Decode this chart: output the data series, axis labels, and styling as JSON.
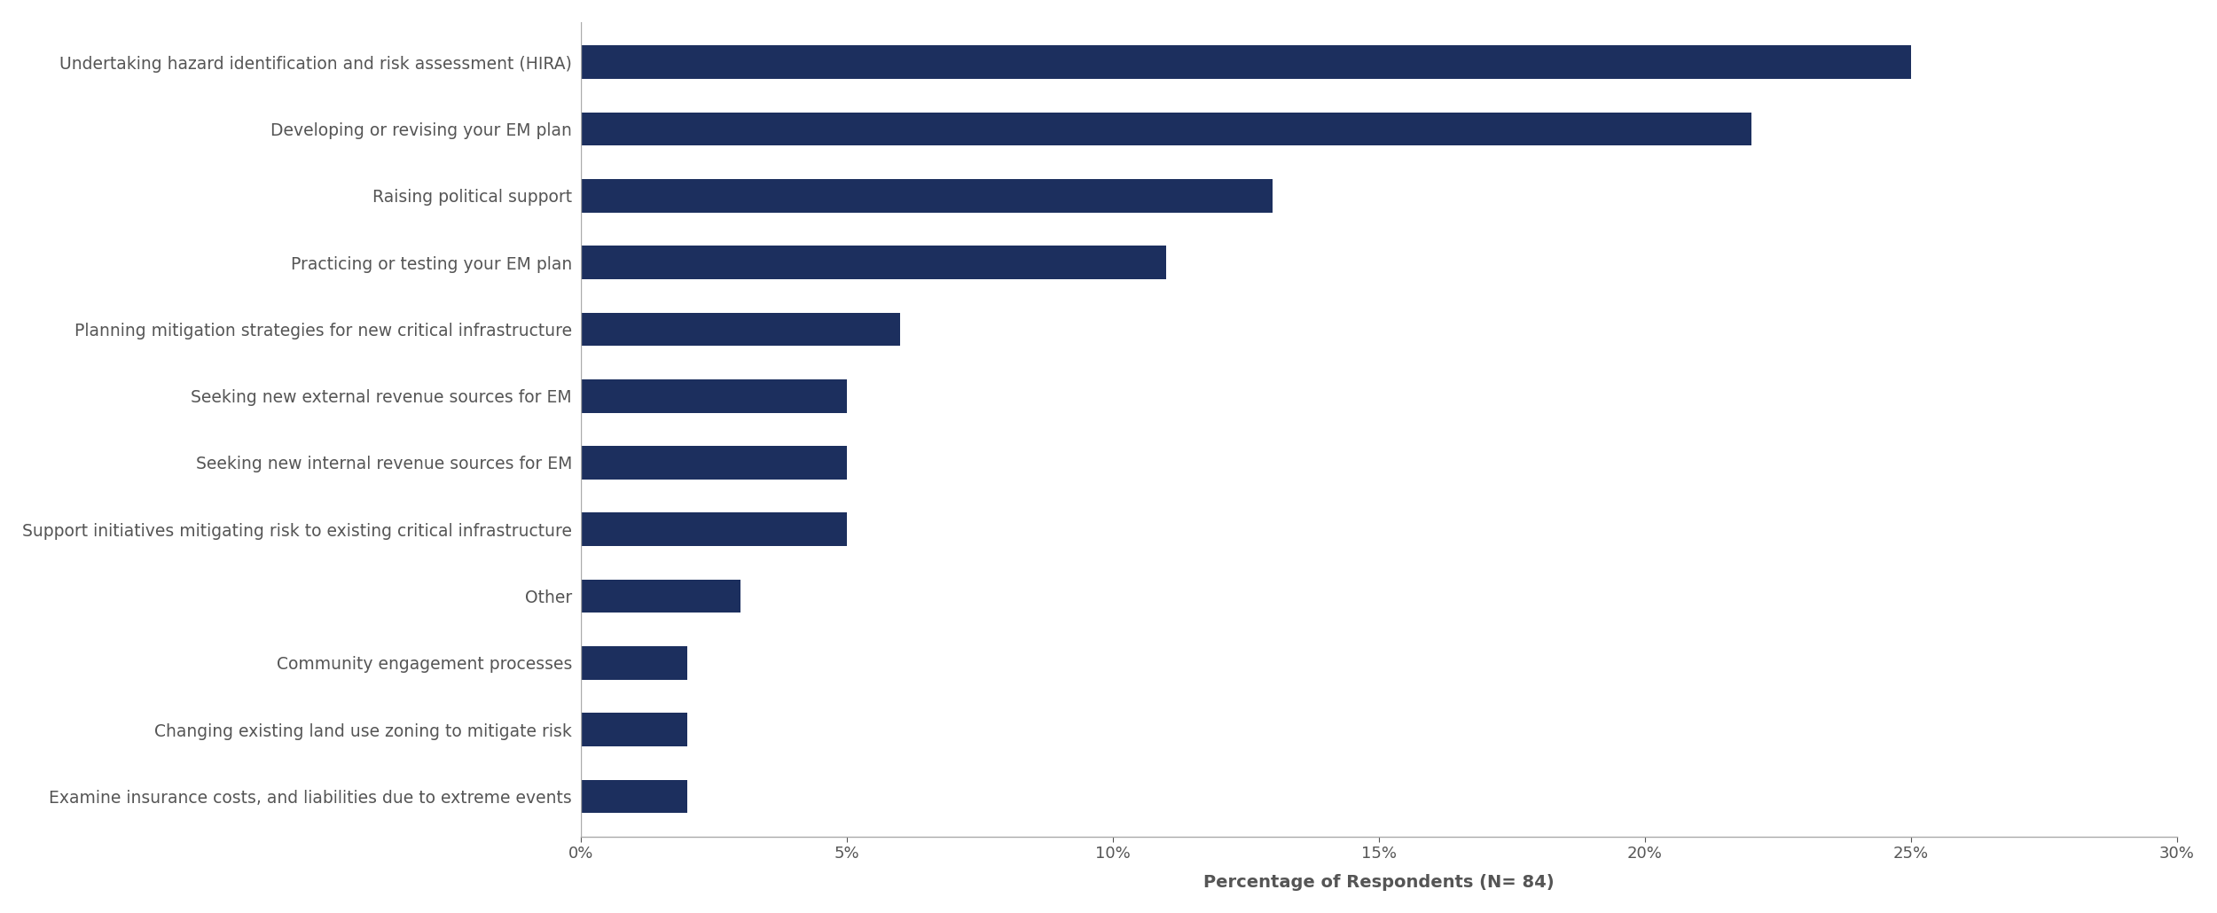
{
  "categories": [
    "Undertaking hazard identification and risk assessment (HIRA)",
    "Developing or revising your EM plan",
    "Raising political support",
    "Practicing or testing your EM plan",
    "Planning mitigation strategies for new critical infrastructure",
    "Seeking new external revenue sources for EM",
    "Seeking new internal revenue sources for EM",
    "Support initiatives mitigating risk to existing critical infrastructure",
    "Other",
    "Community engagement processes",
    "Changing existing land use zoning to mitigate risk",
    "Examine insurance costs, and liabilities due to extreme events"
  ],
  "values": [
    25,
    22,
    13,
    11,
    6,
    5,
    5,
    5,
    3,
    2,
    2,
    2
  ],
  "bar_color": "#1c2f5e",
  "xlabel": "Percentage of Respondents (N= 84)",
  "xlim": [
    0,
    30
  ],
  "xticks": [
    0,
    5,
    10,
    15,
    20,
    25,
    30
  ],
  "xtick_labels": [
    "0%",
    "5%",
    "10%",
    "15%",
    "20%",
    "25%",
    "30%"
  ],
  "bar_height": 0.5,
  "background_color": "#ffffff",
  "label_fontsize": 13.5,
  "xlabel_fontsize": 14,
  "tick_fontsize": 13
}
